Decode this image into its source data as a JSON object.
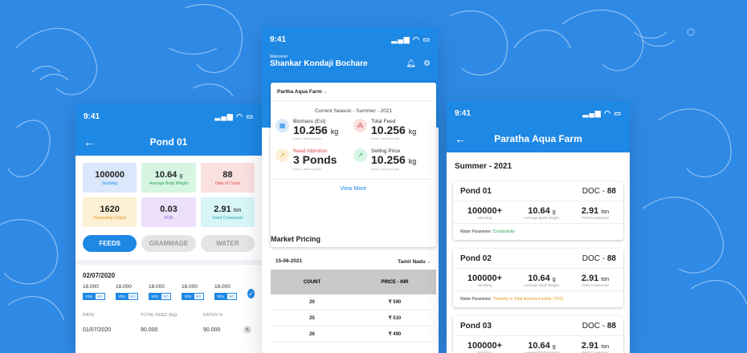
{
  "colors": {
    "primary": "#1e88e5",
    "background": "#2f8ae6"
  },
  "left": {
    "status_time": "9:41",
    "title": "Pond 01",
    "stats": [
      {
        "value": "100000",
        "unit": "",
        "label": "Stocking",
        "bg": "#dbe8fb",
        "lc": "#1e88e5"
      },
      {
        "value": "10.64",
        "unit": "g",
        "label": "Average Body Weight",
        "bg": "#d7f5e3",
        "lc": "#27a55a"
      },
      {
        "value": "88",
        "unit": "",
        "label": "Date of Count",
        "bg": "#fbe0e0",
        "lc": "#e04848"
      },
      {
        "value": "1620",
        "unit": "",
        "label": "Harvesting Output",
        "bg": "#fdf0d5",
        "lc": "#e29a1b"
      },
      {
        "value": "0.03",
        "unit": "",
        "label": "FCR",
        "bg": "#ece0fa",
        "lc": "#8a4fd6"
      },
      {
        "value": "2.91",
        "unit": "ton",
        "label": "Feed Consumed",
        "bg": "#d8f5f8",
        "lc": "#1ea3b5"
      }
    ],
    "tabs": [
      "FEEDS",
      "GRAMMAGE",
      "WATER"
    ],
    "date": "02/07/2020",
    "feed_values": [
      "18.000",
      "18.000",
      "18.000",
      "18.000",
      "18.000"
    ],
    "yes": "YES",
    "no": "NO",
    "table_headers": [
      "DATE",
      "TOTAL FEED (Kg)",
      "EATEN %"
    ],
    "row": [
      "01/07/2020",
      "90.000",
      "90.000"
    ]
  },
  "mid": {
    "status_time": "9:41",
    "welcome": "Welcome!",
    "user": "Shankar Kondaji Bochare",
    "farm": "Partha Aqua Farm",
    "season": "Current Season - Summer - 2021",
    "metrics": [
      {
        "label": "Biomass (Est)",
        "value": "10.256",
        "unit": "kg",
        "note": "from 2 active ponds",
        "icon": "grid-icon",
        "ic": "#1e88e5",
        "ibg": "#dbe8fb",
        "lc": "#333"
      },
      {
        "label": "Total Feed",
        "value": "10.256",
        "unit": "kg",
        "note": "from 2 active ponds",
        "icon": "feed-icon",
        "ic": "#c53030",
        "ibg": "#fbe0e0",
        "lc": "#333"
      },
      {
        "label": "Need Attention",
        "value": "3 Ponds",
        "unit": "",
        "note": "from 2 active ponds",
        "icon": "trend-icon",
        "ic": "#e29a1b",
        "ibg": "#fdf0d5",
        "lc": "#e04848"
      },
      {
        "label": "Selling Price",
        "value": "10.256",
        "unit": "kg",
        "note": "from 2 active ponds",
        "icon": "trend-up-icon",
        "ic": "#27a55a",
        "ibg": "#d7f5e3",
        "lc": "#333"
      }
    ],
    "view_more": "View More",
    "market_title": "Market Pricing",
    "market_date": "15-06-2021",
    "market_state": "Tamil Nadu",
    "col_count": "COUNT",
    "col_price": "PRICE - INR",
    "rows": [
      {
        "count": "20",
        "price": "₹ 590"
      },
      {
        "count": "25",
        "price": "₹ 510"
      },
      {
        "count": "26",
        "price": "₹ 490"
      }
    ]
  },
  "right": {
    "status_time": "9:41",
    "title": "Paratha Aqua Farm",
    "season": "Summer - 2021",
    "ponds": [
      {
        "name": "Pond 01",
        "doc_label": "DOC - ",
        "doc": "88",
        "stocking": "100000+",
        "stocking_label": "Stocking",
        "abw": "10.64",
        "abw_unit": "g",
        "abw_label": "Average Body Weight",
        "feed": "2.91",
        "feed_unit": "ton",
        "feed_label": "Feed Consumed",
        "wp_label": "Water Parameter: ",
        "wp_value": "Conductivity",
        "wp_color": "#27a55a"
      },
      {
        "name": "Pond 02",
        "doc_label": "DOC - ",
        "doc": "88",
        "stocking": "100000+",
        "stocking_label": "Stocking",
        "abw": "10.64",
        "abw_unit": "g",
        "abw_label": "Average Body Weight",
        "feed": "2.91",
        "feed_unit": "ton",
        "feed_label": "Feed Consumed",
        "wp_label": "Water Parameter: ",
        "wp_value": "Turbidity or Total dissolved solids (TDS)",
        "wp_color": "#e29a1b"
      },
      {
        "name": "Pond 03",
        "doc_label": "DOC - ",
        "doc": "88",
        "stocking": "100000+",
        "stocking_label": "Stocking",
        "abw": "10.64",
        "abw_unit": "g",
        "abw_label": "Average Body Weight",
        "feed": "2.91",
        "feed_unit": "ton",
        "feed_label": "Feed Consumed",
        "wp_label": "",
        "wp_value": "",
        "wp_color": "#333"
      }
    ]
  }
}
